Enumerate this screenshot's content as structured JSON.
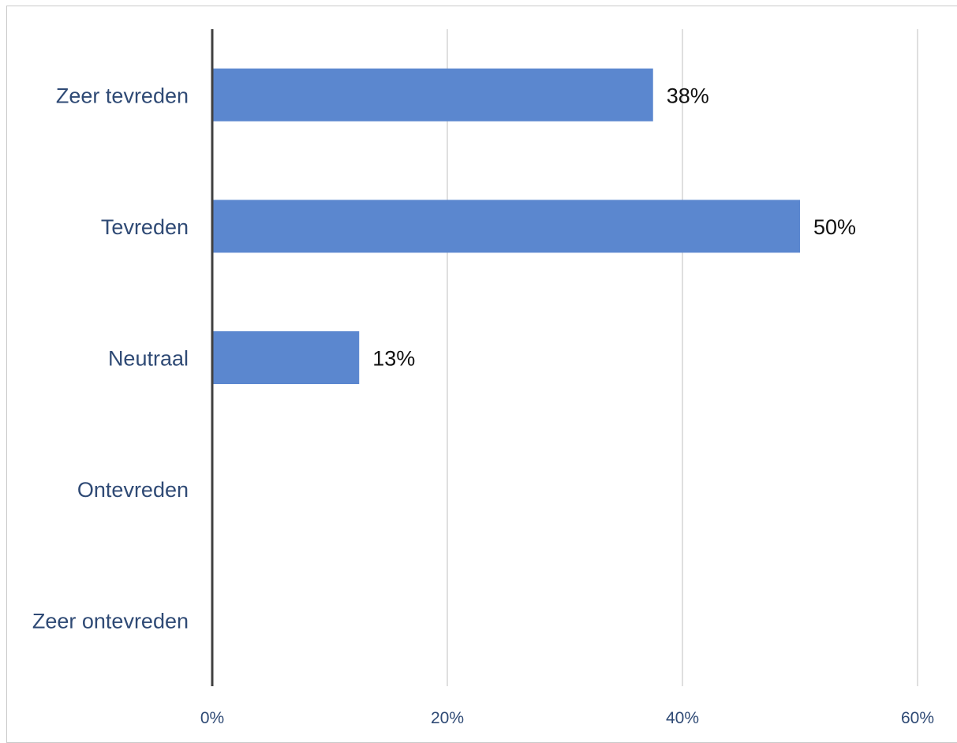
{
  "chart_data": {
    "type": "bar",
    "orientation": "horizontal",
    "categories": [
      "Zeer tevreden",
      "Tevreden",
      "Neutraal",
      "Ontevreden",
      "Zeer ontevreden"
    ],
    "values": [
      37.5,
      50,
      12.5,
      null,
      null
    ],
    "data_labels": [
      "38%",
      "50%",
      "13%",
      "",
      ""
    ],
    "x_ticks": [
      "0%",
      "20%",
      "40%",
      "60%"
    ],
    "xlim": [
      0,
      60
    ],
    "grid": true,
    "legend": "none",
    "title": "",
    "xlabel": "",
    "ylabel": ""
  },
  "colors": {
    "bar": "#5b87cf",
    "category_text": "#2f4a75",
    "tick_text": "#2f4a75",
    "data_label_text": "#111111",
    "gridline": "#bfbfbf",
    "axis": "#404040"
  }
}
